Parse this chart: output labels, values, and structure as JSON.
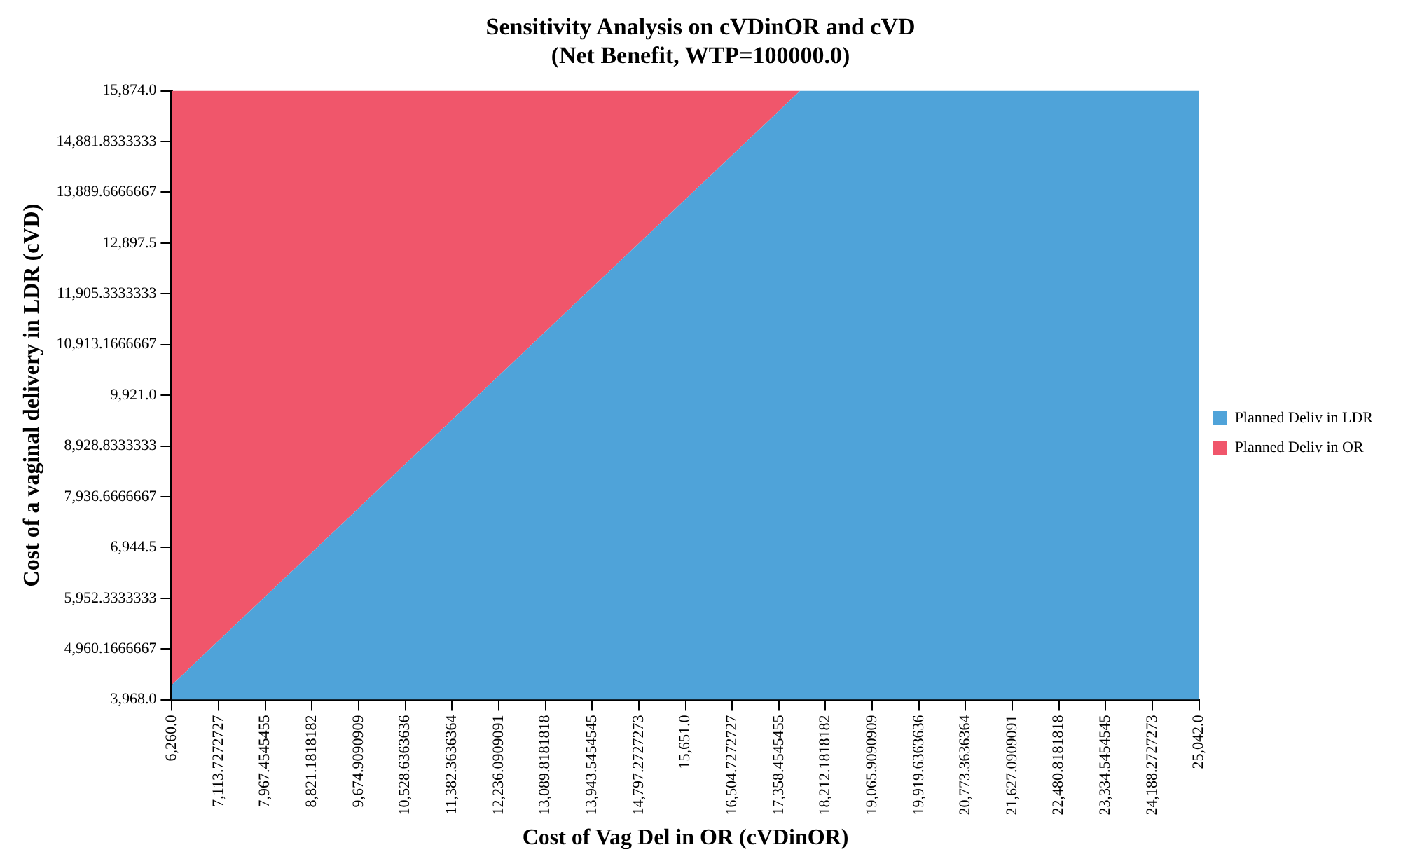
{
  "chart_data": {
    "type": "area",
    "title": "Sensitivity Analysis on cVDinOR and cVD",
    "subtitle": "(Net Benefit, WTP=100000.0)",
    "xlabel": "Cost of Vag Del in OR (cVDinOR)",
    "ylabel": "Cost of a vaginal delivery in LDR (cVD)",
    "x": [
      6260,
      17750,
      25042
    ],
    "series": [
      {
        "name": "Planned Deliv in LDR",
        "color": "#4fa3d9",
        "values": [
          4260,
          15874,
          15874
        ]
      },
      {
        "name": "Planned Deliv in OR",
        "color": "#f0566b",
        "x": [
          6260,
          17750
        ],
        "values": [
          15874,
          15874
        ]
      }
    ],
    "xlim": [
      6260,
      25042
    ],
    "xticks": [
      {
        "value": 6260,
        "label": "6,260.0"
      },
      {
        "value": 7113.7272727,
        "label": "7,113.7272727"
      },
      {
        "value": 7967.4545455,
        "label": "7,967.4545455"
      },
      {
        "value": 8821.1818182,
        "label": "8,821.1818182"
      },
      {
        "value": 9674.9090909,
        "label": "9,674.9090909"
      },
      {
        "value": 10528.6363636,
        "label": "10,528.6363636"
      },
      {
        "value": 11382.3636364,
        "label": "11,382.3636364"
      },
      {
        "value": 12236.0909091,
        "label": "12,236.0909091"
      },
      {
        "value": 13089.8181818,
        "label": "13,089.8181818"
      },
      {
        "value": 13943.5454545,
        "label": "13,943.5454545"
      },
      {
        "value": 14797.2727273,
        "label": "14,797.2727273"
      },
      {
        "value": 15651,
        "label": "15,651.0"
      },
      {
        "value": 16504.7272727,
        "label": "16,504.7272727"
      },
      {
        "value": 17358.4545455,
        "label": "17,358.4545455"
      },
      {
        "value": 18212.1818182,
        "label": "18,212.1818182"
      },
      {
        "value": 19065.9090909,
        "label": "19,065.9090909"
      },
      {
        "value": 19919.6363636,
        "label": "19,919.6363636"
      },
      {
        "value": 20773.3636364,
        "label": "20,773.3636364"
      },
      {
        "value": 21627.0909091,
        "label": "21,627.0909091"
      },
      {
        "value": 22480.8181818,
        "label": "22,480.8181818"
      },
      {
        "value": 23334.5454545,
        "label": "23,334.5454545"
      },
      {
        "value": 24188.2727273,
        "label": "24,188.2727273"
      },
      {
        "value": 25042,
        "label": "25,042.0"
      }
    ],
    "ylim": [
      3968,
      15874
    ],
    "yticks": [
      {
        "value": 3968,
        "label": "3,968.0"
      },
      {
        "value": 4960.1666667,
        "label": "4,960.1666667"
      },
      {
        "value": 5952.3333333,
        "label": "5,952.3333333"
      },
      {
        "value": 6944.5,
        "label": "6,944.5"
      },
      {
        "value": 7936.6666667,
        "label": "7,936.6666667"
      },
      {
        "value": 8928.8333333,
        "label": "8,928.8333333"
      },
      {
        "value": 9921,
        "label": "9,921.0"
      },
      {
        "value": 10913.1666667,
        "label": "10,913.1666667"
      },
      {
        "value": 11905.3333333,
        "label": "11,905.3333333"
      },
      {
        "value": 12897.5,
        "label": "12,897.5"
      },
      {
        "value": 13889.6666667,
        "label": "13,889.6666667"
      },
      {
        "value": 14881.8333333,
        "label": "14,881.8333333"
      },
      {
        "value": 15874,
        "label": "15,874.0"
      }
    ],
    "grid": false,
    "legend": "right",
    "marker": "none"
  }
}
